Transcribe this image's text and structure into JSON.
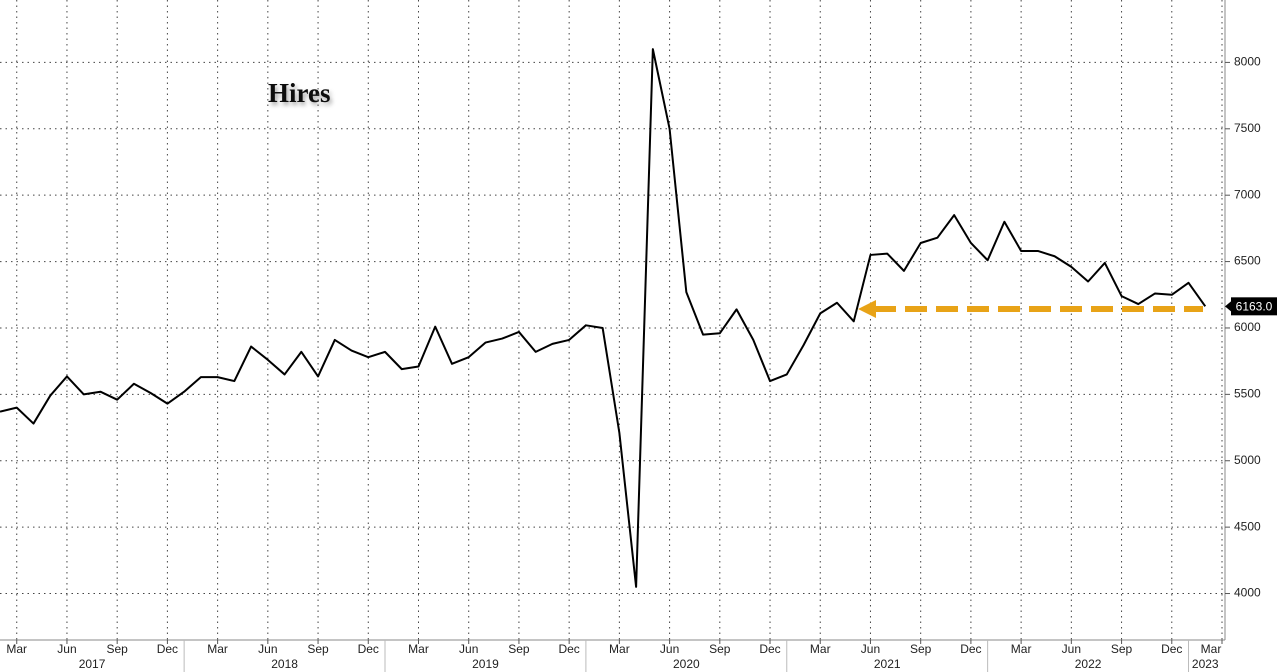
{
  "chart_data": {
    "type": "line",
    "title": "Hires",
    "x": [
      "2017-02",
      "2017-03",
      "2017-04",
      "2017-05",
      "2017-06",
      "2017-07",
      "2017-08",
      "2017-09",
      "2017-10",
      "2017-11",
      "2017-12",
      "2018-01",
      "2018-02",
      "2018-03",
      "2018-04",
      "2018-05",
      "2018-06",
      "2018-07",
      "2018-08",
      "2018-09",
      "2018-10",
      "2018-11",
      "2018-12",
      "2019-01",
      "2019-02",
      "2019-03",
      "2019-04",
      "2019-05",
      "2019-06",
      "2019-07",
      "2019-08",
      "2019-09",
      "2019-10",
      "2019-11",
      "2019-12",
      "2020-01",
      "2020-02",
      "2020-03",
      "2020-04",
      "2020-05",
      "2020-06",
      "2020-07",
      "2020-08",
      "2020-09",
      "2020-10",
      "2020-11",
      "2020-12",
      "2021-01",
      "2021-02",
      "2021-03",
      "2021-04",
      "2021-05",
      "2021-06",
      "2021-07",
      "2021-08",
      "2021-09",
      "2021-10",
      "2021-11",
      "2021-12",
      "2022-01",
      "2022-02",
      "2022-03",
      "2022-04",
      "2022-05",
      "2022-06",
      "2022-07",
      "2022-08",
      "2022-09",
      "2022-10",
      "2022-11",
      "2022-12",
      "2023-01",
      "2023-02"
    ],
    "series": [
      {
        "name": "Hires",
        "color": "#000000",
        "values": [
          5370,
          5400,
          5280,
          5490,
          5635,
          5500,
          5520,
          5460,
          5580,
          5510,
          5430,
          5520,
          5630,
          5630,
          5600,
          5860,
          5760,
          5650,
          5820,
          5635,
          5910,
          5830,
          5780,
          5820,
          5690,
          5710,
          6010,
          5730,
          5780,
          5890,
          5920,
          5970,
          5820,
          5880,
          5910,
          6020,
          6000,
          5210,
          4050,
          8100,
          7500,
          6270,
          5950,
          5960,
          6140,
          5910,
          5600,
          5650,
          5870,
          6110,
          6190,
          6050,
          6550,
          6560,
          6430,
          6640,
          6680,
          6850,
          6640,
          6510,
          6800,
          6580,
          6580,
          6540,
          6460,
          6350,
          6490,
          6240,
          6180,
          6260,
          6250,
          6340,
          6163
        ]
      }
    ],
    "last_value": {
      "value": 6163,
      "label": "6163.0"
    },
    "xlim": [
      "2017-02",
      "2023-03"
    ],
    "xticks": [
      {
        "value": "2017-03",
        "label": "Mar"
      },
      {
        "value": "2017-06",
        "label": "Jun"
      },
      {
        "value": "2017-09",
        "label": "Sep"
      },
      {
        "value": "2017-12",
        "label": "Dec"
      },
      {
        "value": "2018-03",
        "label": "Mar"
      },
      {
        "value": "2018-06",
        "label": "Jun"
      },
      {
        "value": "2018-09",
        "label": "Sep"
      },
      {
        "value": "2018-12",
        "label": "Dec"
      },
      {
        "value": "2019-03",
        "label": "Mar"
      },
      {
        "value": "2019-06",
        "label": "Jun"
      },
      {
        "value": "2019-09",
        "label": "Sep"
      },
      {
        "value": "2019-12",
        "label": "Dec"
      },
      {
        "value": "2020-03",
        "label": "Mar"
      },
      {
        "value": "2020-06",
        "label": "Jun"
      },
      {
        "value": "2020-09",
        "label": "Sep"
      },
      {
        "value": "2020-12",
        "label": "Dec"
      },
      {
        "value": "2021-03",
        "label": "Mar"
      },
      {
        "value": "2021-06",
        "label": "Jun"
      },
      {
        "value": "2021-09",
        "label": "Sep"
      },
      {
        "value": "2021-12",
        "label": "Dec"
      },
      {
        "value": "2022-03",
        "label": "Mar"
      },
      {
        "value": "2022-06",
        "label": "Jun"
      },
      {
        "value": "2022-09",
        "label": "Sep"
      },
      {
        "value": "2022-12",
        "label": "Dec"
      },
      {
        "value": "2023-03",
        "label": "Mar"
      }
    ],
    "years": [
      "2017",
      "2018",
      "2019",
      "2020",
      "2021",
      "2022",
      "2023"
    ],
    "ylim": [
      3650,
      8470
    ],
    "yticks": [
      4000,
      4500,
      5000,
      5500,
      6000,
      6500,
      7000,
      7500,
      8000
    ],
    "grid": true
  }
}
